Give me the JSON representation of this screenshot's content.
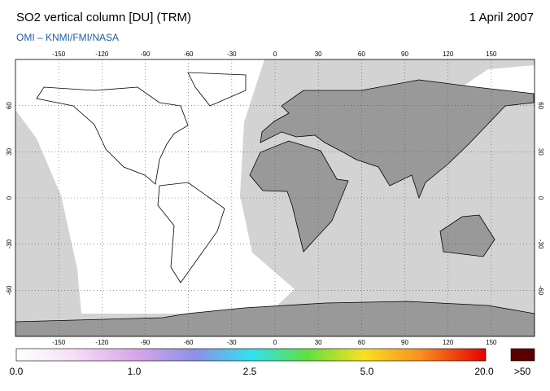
{
  "header": {
    "title": "SO2 vertical column [DU] (TRM)",
    "date": "1 April 2007",
    "subtitle": "OMI  –  KNMI/FMI/NASA"
  },
  "map": {
    "lon_ticks": [
      -150,
      -120,
      -90,
      -60,
      -30,
      0,
      30,
      60,
      90,
      120,
      150
    ],
    "lat_ticks": [
      60,
      30,
      0,
      -30,
      -60
    ]
  },
  "colorbar": {
    "labels": [
      "0.0",
      "1.0",
      "2.5",
      "5.0",
      "20.0"
    ],
    "overflow": ">50"
  }
}
